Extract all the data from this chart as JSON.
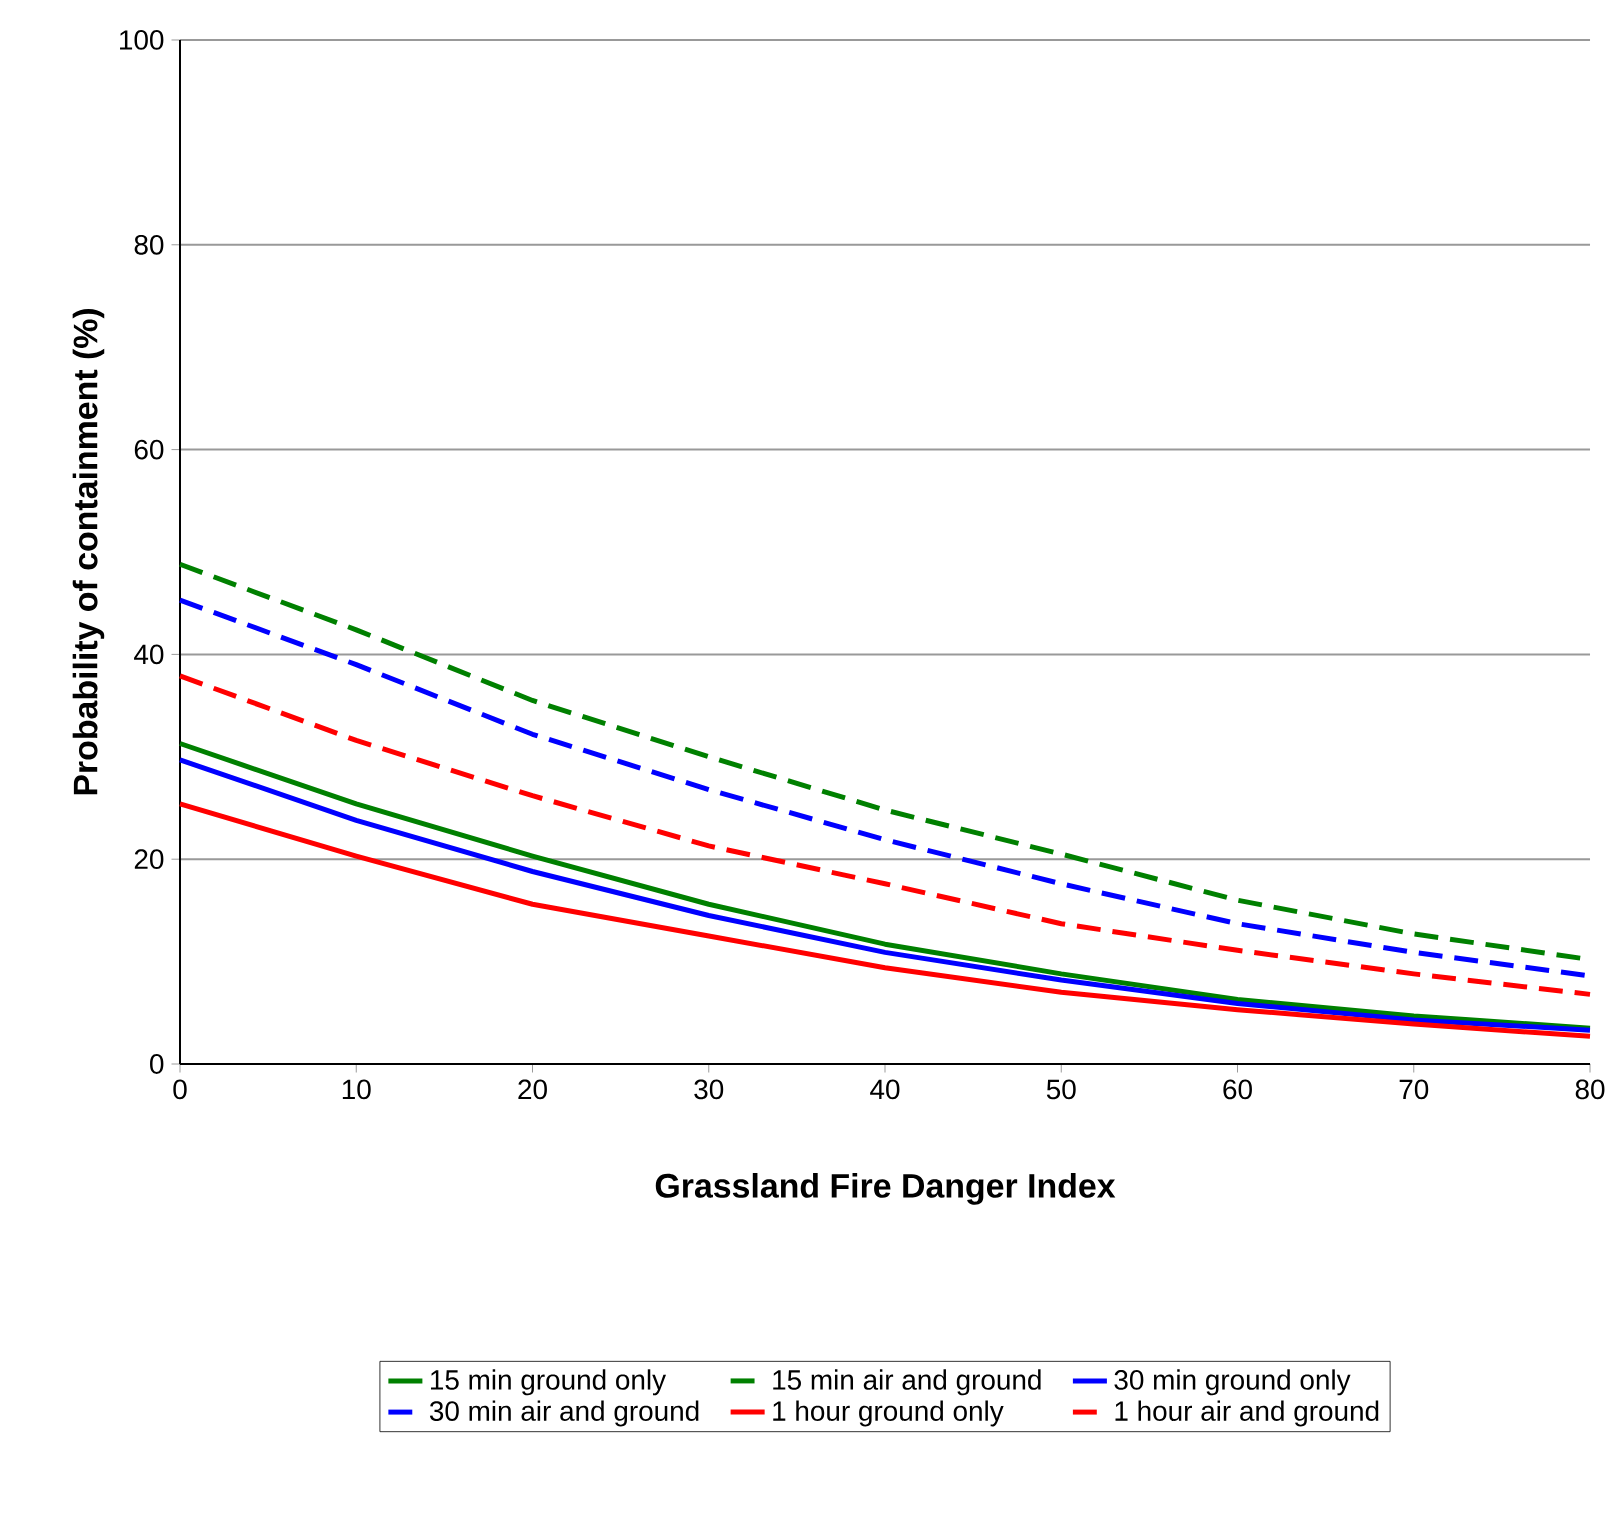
{
  "chart_data": {
    "type": "line",
    "xlabel": "Grassland Fire Danger Index",
    "ylabel": "Probability of containment (%)",
    "x": [
      0,
      10,
      20,
      30,
      40,
      50,
      60,
      70,
      80
    ],
    "series": [
      {
        "name": "15 min ground only",
        "color": "#008000",
        "line_style": "solid",
        "values": [
          31.3,
          25.4,
          20.3,
          15.6,
          11.7,
          8.8,
          6.3,
          4.7,
          3.5
        ]
      },
      {
        "name": "15 min air and ground",
        "color": "#008000",
        "line_style": "dashed",
        "values": [
          48.8,
          42.4,
          35.5,
          30,
          24.8,
          20.5,
          16,
          12.7,
          10.2
        ]
      },
      {
        "name": "30 min ground only",
        "color": "#0000ff",
        "line_style": "solid",
        "values": [
          29.7,
          23.8,
          18.8,
          14.5,
          10.9,
          8.2,
          5.9,
          4.3,
          3.3
        ]
      },
      {
        "name": "30 min air and ground",
        "color": "#0000ff",
        "line_style": "dashed",
        "values": [
          45.3,
          39,
          32.2,
          26.8,
          21.9,
          17.6,
          13.7,
          10.9,
          8.6
        ]
      },
      {
        "name": "1 hour ground only",
        "color": "#ff0000",
        "line_style": "solid",
        "values": [
          25.4,
          20.3,
          15.6,
          12.5,
          9.4,
          7,
          5.3,
          3.9,
          2.7
        ]
      },
      {
        "name": "1 hour air and ground",
        "color": "#ff0000",
        "line_style": "dashed",
        "values": [
          37.9,
          31.6,
          26.2,
          21.3,
          17.6,
          13.7,
          11.1,
          8.8,
          6.8
        ]
      }
    ],
    "xlim": [
      0,
      80
    ],
    "xticks": [
      0,
      10,
      20,
      30,
      40,
      50,
      60,
      70,
      80
    ],
    "ylim": [
      0,
      100
    ],
    "yticks": [
      0,
      20,
      40,
      60,
      80,
      100
    ],
    "grid": "y",
    "legend": "bottom",
    "marker": "none"
  }
}
